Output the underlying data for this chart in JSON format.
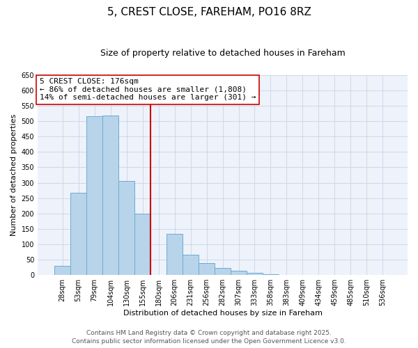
{
  "title": "5, CREST CLOSE, FAREHAM, PO16 8RZ",
  "subtitle": "Size of property relative to detached houses in Fareham",
  "xlabel": "Distribution of detached houses by size in Fareham",
  "ylabel": "Number of detached properties",
  "bar_labels": [
    "28sqm",
    "53sqm",
    "79sqm",
    "104sqm",
    "130sqm",
    "155sqm",
    "180sqm",
    "206sqm",
    "231sqm",
    "256sqm",
    "282sqm",
    "307sqm",
    "333sqm",
    "358sqm",
    "383sqm",
    "409sqm",
    "434sqm",
    "459sqm",
    "485sqm",
    "510sqm",
    "536sqm"
  ],
  "bar_values": [
    30,
    267,
    517,
    519,
    305,
    200,
    0,
    133,
    67,
    40,
    22,
    14,
    7,
    3,
    1,
    1,
    0,
    0,
    0,
    0,
    0
  ],
  "bar_color": "#b8d4ea",
  "bar_edge_color": "#6aaad4",
  "vline_color": "#cc0000",
  "annotation_line1": "5 CREST CLOSE: 176sqm",
  "annotation_line2": "← 86% of detached houses are smaller (1,808)",
  "annotation_line3": "14% of semi-detached houses are larger (301) →",
  "ylim": [
    0,
    650
  ],
  "yticks": [
    0,
    50,
    100,
    150,
    200,
    250,
    300,
    350,
    400,
    450,
    500,
    550,
    600,
    650
  ],
  "grid_color": "#c8d4e8",
  "background_color": "#eef2fa",
  "footer1": "Contains HM Land Registry data © Crown copyright and database right 2025.",
  "footer2": "Contains public sector information licensed under the Open Government Licence v3.0.",
  "title_fontsize": 11,
  "subtitle_fontsize": 9,
  "xlabel_fontsize": 8,
  "ylabel_fontsize": 8,
  "tick_fontsize": 7,
  "annotation_fontsize": 8,
  "footer_fontsize": 6.5
}
